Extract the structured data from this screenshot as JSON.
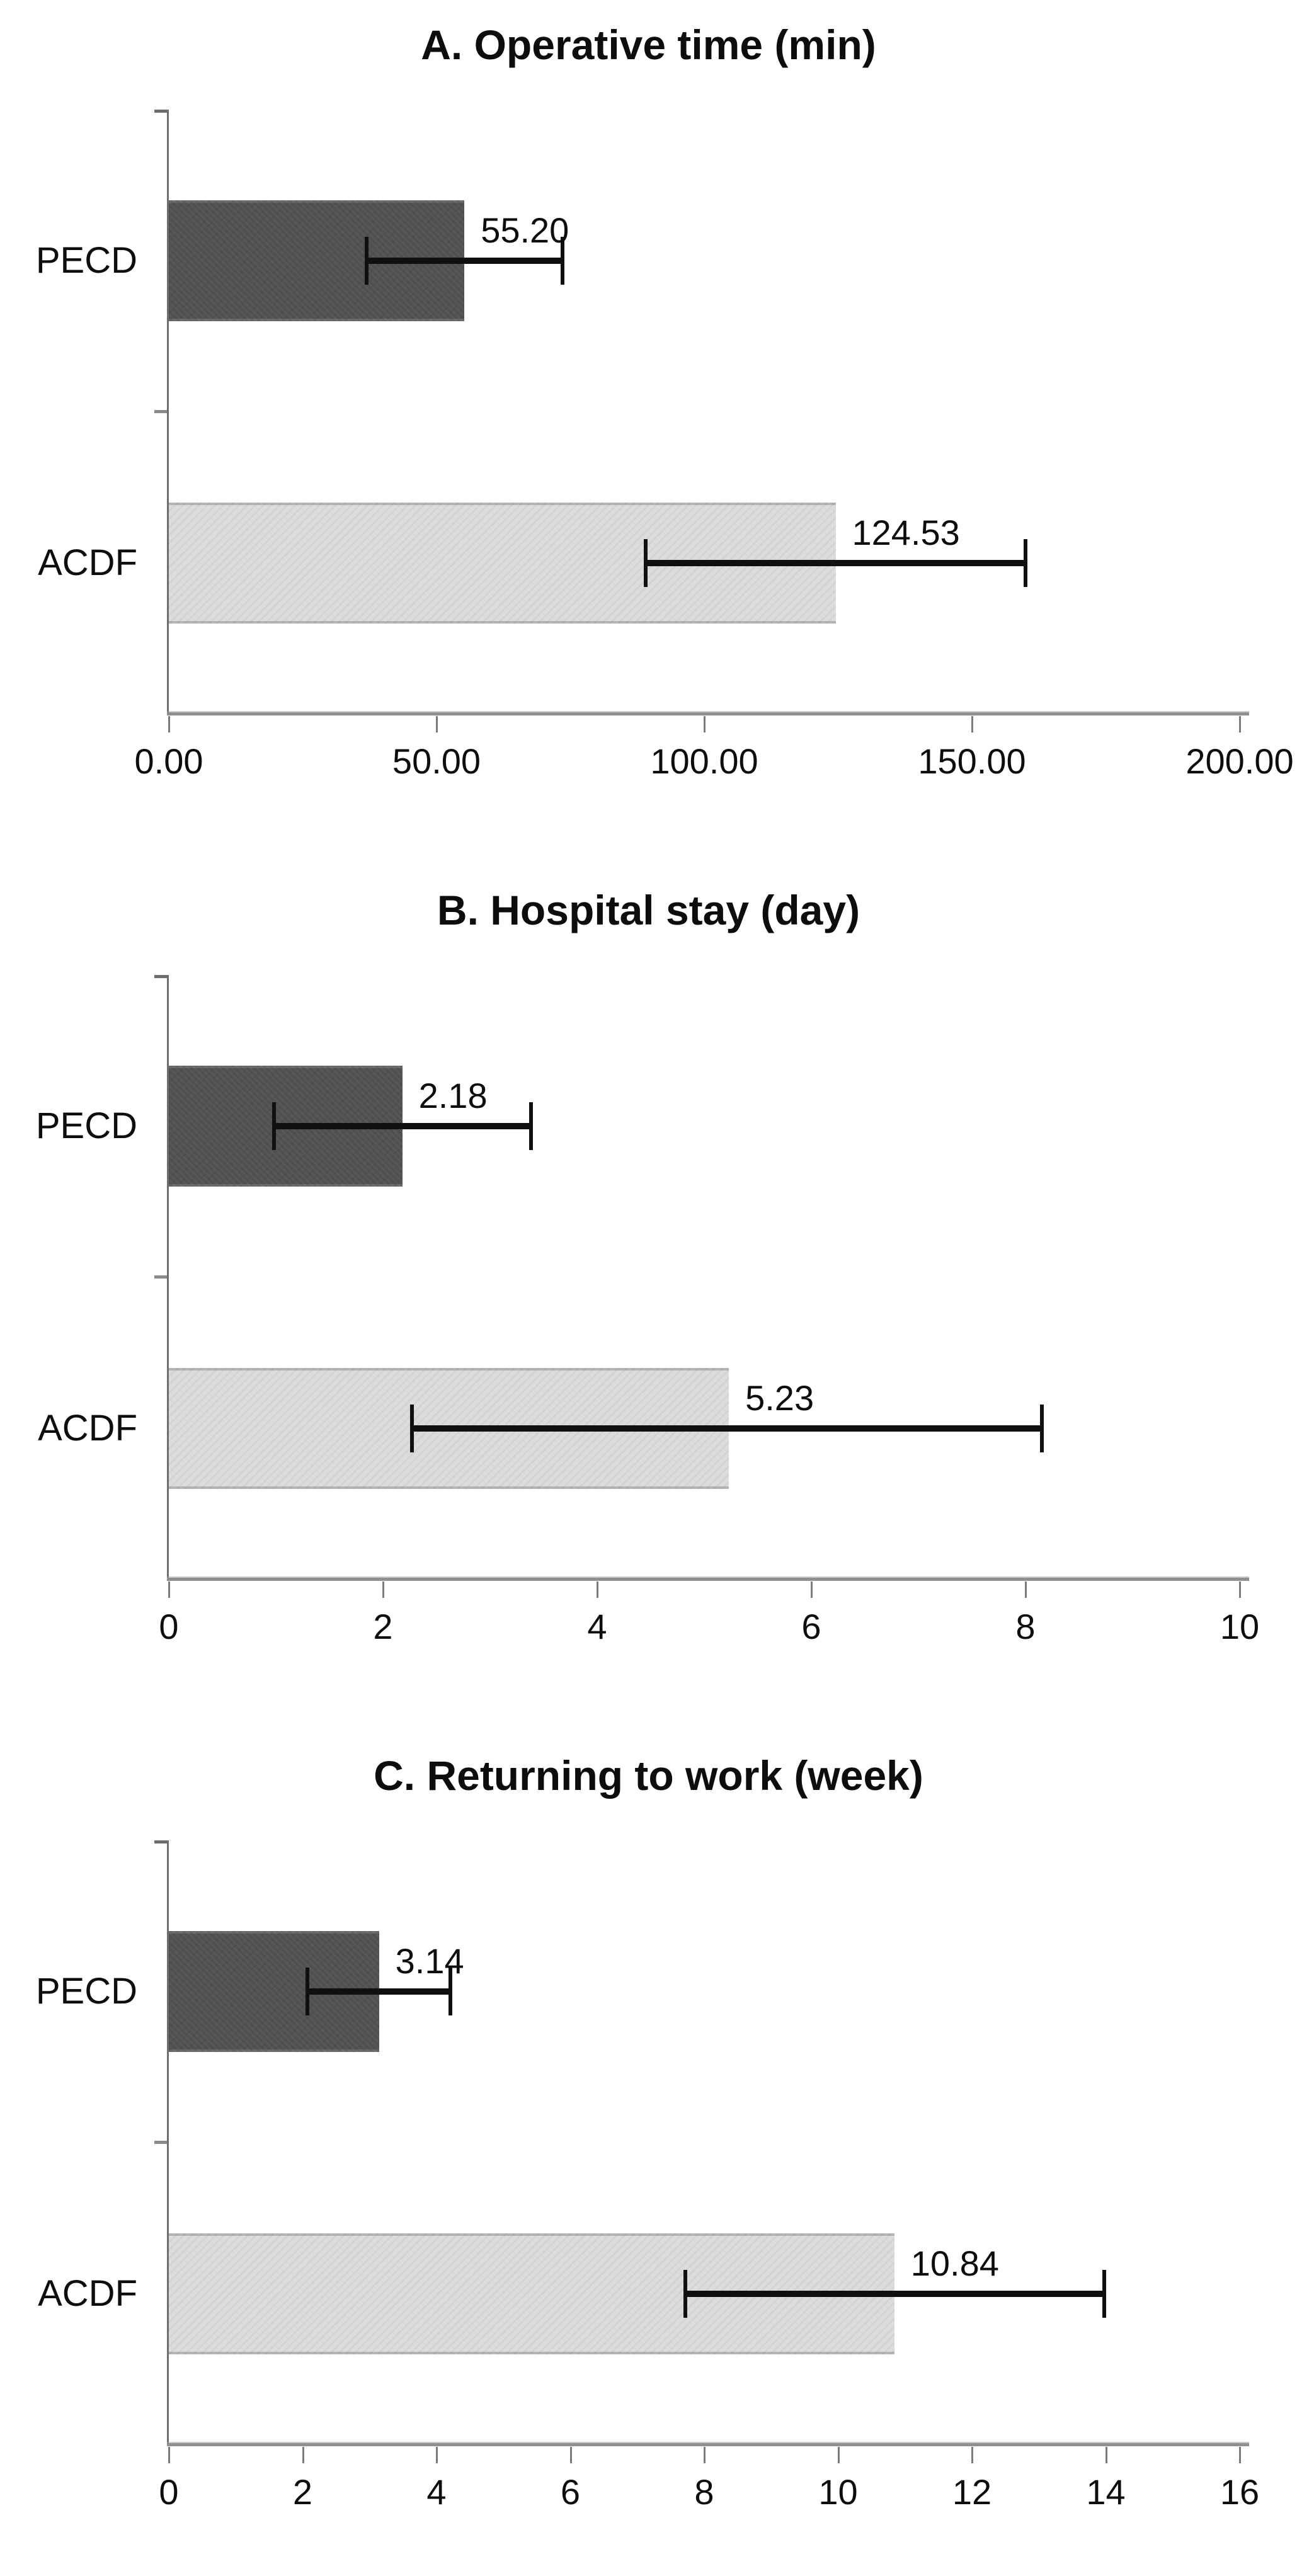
{
  "page": {
    "background": "#ffffff"
  },
  "colors": {
    "pecd_bar": "#515151",
    "acdf_bar": "#dbdbdb",
    "error_bar": "#101010",
    "axis": "#6e6e6e",
    "baseline": "#8f8f8f",
    "text": "#0d0d0d"
  },
  "chart_data": [
    {
      "type": "bar",
      "orientation": "horizontal",
      "title": "A. Operative time (min)",
      "xlim": [
        0,
        200
      ],
      "grid": false,
      "legend": false,
      "ticks": {
        "values": [
          0,
          50,
          100,
          150,
          200
        ],
        "labels": [
          "0.00",
          "50.00",
          "100.00",
          "150.00",
          "200.00"
        ]
      },
      "rows": [
        {
          "label": "PECD",
          "value": 55.2,
          "value_label": "55.20",
          "err_low": 36.9,
          "err_high": 73.5,
          "color": "#515151"
        },
        {
          "label": "ACDF",
          "value": 124.53,
          "value_label": "124.53",
          "err_low": 89.0,
          "err_high": 160.0,
          "color": "#dbdbdb"
        }
      ]
    },
    {
      "type": "bar",
      "orientation": "horizontal",
      "title": "B. Hospital stay (day)",
      "xlim": [
        0,
        10
      ],
      "grid": false,
      "legend": false,
      "ticks": {
        "values": [
          0,
          2,
          4,
          6,
          8,
          10
        ],
        "labels": [
          "0",
          "2",
          "4",
          "6",
          "8",
          "10"
        ]
      },
      "rows": [
        {
          "label": "PECD",
          "value": 2.18,
          "value_label": "2.18",
          "err_low": 0.98,
          "err_high": 3.38,
          "color": "#515151"
        },
        {
          "label": "ACDF",
          "value": 5.23,
          "value_label": "5.23",
          "err_low": 2.27,
          "err_high": 8.15,
          "color": "#dbdbdb"
        }
      ]
    },
    {
      "type": "bar",
      "orientation": "horizontal",
      "title": "C. Returning to work (week)",
      "xlim": [
        0,
        16
      ],
      "grid": false,
      "legend": false,
      "ticks": {
        "values": [
          0,
          2,
          4,
          6,
          8,
          10,
          12,
          14,
          16
        ],
        "labels": [
          "0",
          "2",
          "4",
          "6",
          "8",
          "10",
          "12",
          "14",
          "16"
        ]
      },
      "rows": [
        {
          "label": "PECD",
          "value": 3.14,
          "value_label": "3.14",
          "err_low": 2.07,
          "err_high": 4.21,
          "color": "#515151"
        },
        {
          "label": "ACDF",
          "value": 10.84,
          "value_label": "10.84",
          "err_low": 7.72,
          "err_high": 13.98,
          "color": "#dbdbdb"
        }
      ]
    }
  ]
}
